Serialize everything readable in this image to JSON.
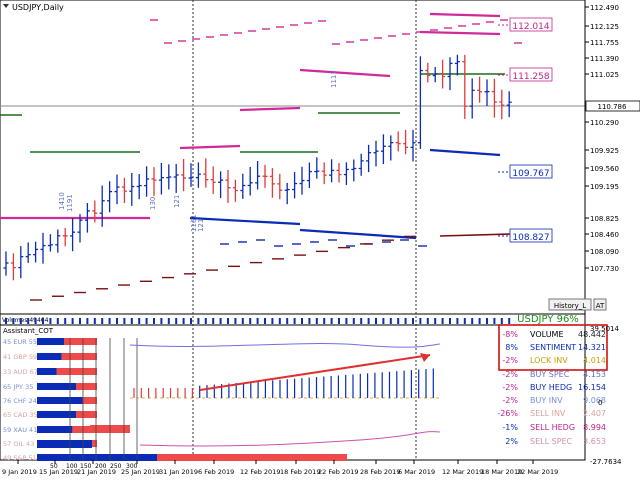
{
  "window": {
    "main_title": "USDJPY,Daily",
    "sub_title": "Assistant_COT",
    "volume_label": "Volumes 49464"
  },
  "price_scale": [
    "112.490",
    "112.125",
    "111.755",
    "111.390",
    "111.025",
    "110.786",
    "110.290",
    "109.925",
    "109.560",
    "109.195",
    "108.825",
    "108.460",
    "108.090",
    "107.730"
  ],
  "current_price": "110.786",
  "level_labels": [
    {
      "text": "112.014",
      "color": "#c0238c"
    },
    {
      "text": "111.258",
      "color": "#c0238c"
    },
    {
      "text": "109.767",
      "color": "#0a2bb5"
    },
    {
      "text": "108.827",
      "color": "#0a2bb5"
    }
  ],
  "rotated_labels": [
    "1117",
    "130",
    "121",
    "1161",
    "121",
    "1410",
    "1191"
  ],
  "history_button": "History_L",
  "at_button": "AT",
  "usdjpy_badge": "USDJPY 96%",
  "indicator_scale": {
    "top": "39.5014",
    "mid": "0",
    "bottom": "-27.7634"
  },
  "cot_rows": [
    {
      "label": "45 EUR 55",
      "pct_long": 45,
      "color": "#7a8fd0"
    },
    {
      "label": "41 GBP 59",
      "pct_long": 41,
      "color": "#d9a0a0"
    },
    {
      "label": "33 AUD 67",
      "pct_long": 33,
      "color": "#d9a0a0"
    },
    {
      "label": "65 JPY 35",
      "pct_long": 65,
      "color": "#7a8fd0"
    },
    {
      "label": "76 CHF 24",
      "pct_long": 76,
      "color": "#7a8fd0"
    },
    {
      "label": "65 CAD 35",
      "pct_long": 65,
      "color": "#d9a0a0"
    },
    {
      "label": "59 XAU 41",
      "pct_long": 59,
      "color": "#7a8fd0"
    },
    {
      "label": "57 OIL 43",
      "pct_long": 57,
      "color": "#d9a0a0"
    },
    {
      "label": "49 S&P 51",
      "pct_long": 49,
      "color": "#d9a0a0"
    }
  ],
  "cot_scale": [
    "50",
    "100",
    "150",
    "200",
    "250",
    "300"
  ],
  "stats": [
    {
      "pct": "-8%",
      "name": "VOLUME",
      "value": "48.442",
      "pct_color": "#c0238c",
      "name_color": "#000000",
      "value_color": "#222222"
    },
    {
      "pct": "8%",
      "name": "SENTIMENT",
      "value": "14.321",
      "pct_color": "#0a2bb5",
      "name_color": "#0a2bb5",
      "value_color": "#0a2bb5"
    },
    {
      "pct": "-2%",
      "name": "LOCK INV",
      "value": "4.014",
      "pct_color": "#c0238c",
      "name_color": "#c8a000",
      "value_color": "#c8a000"
    },
    {
      "pct": "-2%",
      "name": "BUY SPEC",
      "value": "4.153",
      "pct_color": "#c0238c",
      "name_color": "#6070d0",
      "value_color": "#6070d0"
    },
    {
      "pct": "-2%",
      "name": "BUY HEDG",
      "value": "16.154",
      "pct_color": "#c0238c",
      "name_color": "#0a2bb5",
      "value_color": "#0a2bb5"
    },
    {
      "pct": "-2%",
      "name": "BUY INV",
      "value": "9.068",
      "pct_color": "#c0238c",
      "name_color": "#7a8fd0",
      "value_color": "#7a8fd0"
    },
    {
      "pct": "-26%",
      "name": "SELL INV",
      "value": "2.407",
      "pct_color": "#c0238c",
      "name_color": "#d9a0a0",
      "value_color": "#d9a0a0"
    },
    {
      "pct": "-1%",
      "name": "SELL HEDG",
      "value": "8.994",
      "pct_color": "#0a2bb5",
      "name_color": "#c0238c",
      "value_color": "#c0238c"
    },
    {
      "pct": "2%",
      "name": "SELL SPEC",
      "value": "3.653",
      "pct_color": "#0a2bb5",
      "name_color": "#d090b0",
      "value_color": "#d090b0"
    }
  ],
  "time_axis": [
    "9 Jan 2019",
    "15 Jan 2019",
    "21 Jan 2019",
    "25 Jan 2019",
    "31 Jan 2019",
    "6 Feb 2019",
    "12 Feb 2019",
    "18 Feb 2019",
    "22 Feb 2019",
    "28 Feb 2019",
    "6 Mar 2019",
    "12 Mar 2019",
    "18 Mar 2019",
    "22 Mar 2019"
  ],
  "colors": {
    "bull": "#0a2bb5",
    "bear": "#e03a3a",
    "magenta": "#d02a9a",
    "darkred": "#7a1010",
    "green": "#1a6b1a",
    "badge_green": "#1a8a1a",
    "arrow": "#e03030"
  }
}
